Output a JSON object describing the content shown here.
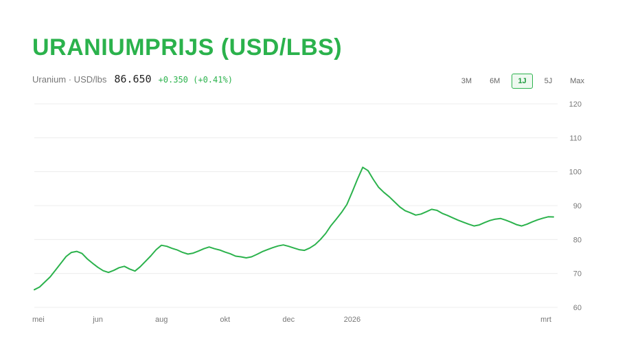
{
  "header": {
    "title": "URANIUMPRIJS (USD/LBS)",
    "instrument_label": "Uranium · USD/lbs",
    "price": "86.650",
    "change": "+0.350 (+0.41%)"
  },
  "ranges": [
    {
      "label": "3M",
      "active": false
    },
    {
      "label": "6M",
      "active": false
    },
    {
      "label": "1J",
      "active": true
    },
    {
      "label": "5J",
      "active": false
    },
    {
      "label": "Max",
      "active": false
    }
  ],
  "colors": {
    "accent": "#2bb24c",
    "grid": "#ececec"
  },
  "chart_data": {
    "type": "line",
    "title": "URANIUMPRIJS (USD/LBS)",
    "xlabel": "",
    "ylabel": "",
    "ylim": [
      60,
      120
    ],
    "yticks": [
      120,
      110,
      100,
      90,
      80,
      70,
      60
    ],
    "xticks": [
      {
        "label": "mei",
        "index": 0
      },
      {
        "label": "jun",
        "index": 12
      },
      {
        "label": "aug",
        "index": 24
      },
      {
        "label": "okt",
        "index": 36
      },
      {
        "label": "dec",
        "index": 48
      },
      {
        "label": "2026",
        "index": 60
      },
      {
        "label": "mrt",
        "index": 72
      }
    ],
    "grid": true,
    "series": [
      {
        "values": [
          65.2,
          66,
          67.5,
          69,
          71,
          73,
          75,
          76.2,
          76.5,
          75.9,
          74.3,
          73,
          71.8,
          70.8,
          70.3,
          70.9,
          71.7,
          72.1,
          71.3,
          70.7,
          72,
          73.6,
          75.2,
          77,
          78.3,
          78,
          77.4,
          76.9,
          76.2,
          75.7,
          76,
          76.6,
          77.3,
          77.8,
          77.3,
          76.9,
          76.3,
          75.8,
          75.1,
          74.9,
          74.6,
          74.9,
          75.6,
          76.4,
          77,
          77.6,
          78.1,
          78.4,
          78,
          77.5,
          77,
          76.8,
          77.5,
          78.5,
          80,
          81.8,
          84.1,
          86,
          88,
          90.3,
          94,
          97.8,
          101.3,
          100.3,
          97.7,
          95.4,
          93.9,
          92.6,
          91.1,
          89.6,
          88.5,
          87.9,
          87.2,
          87.5,
          88.2,
          88.9,
          88.6,
          87.7,
          87.1,
          86.4,
          85.7,
          85.1,
          84.5,
          84,
          84.3,
          85,
          85.6,
          86,
          86.2,
          85.7,
          85.1,
          84.4,
          84,
          84.5,
          85.2,
          85.8,
          86.3,
          86.7,
          86.65
        ]
      }
    ]
  }
}
